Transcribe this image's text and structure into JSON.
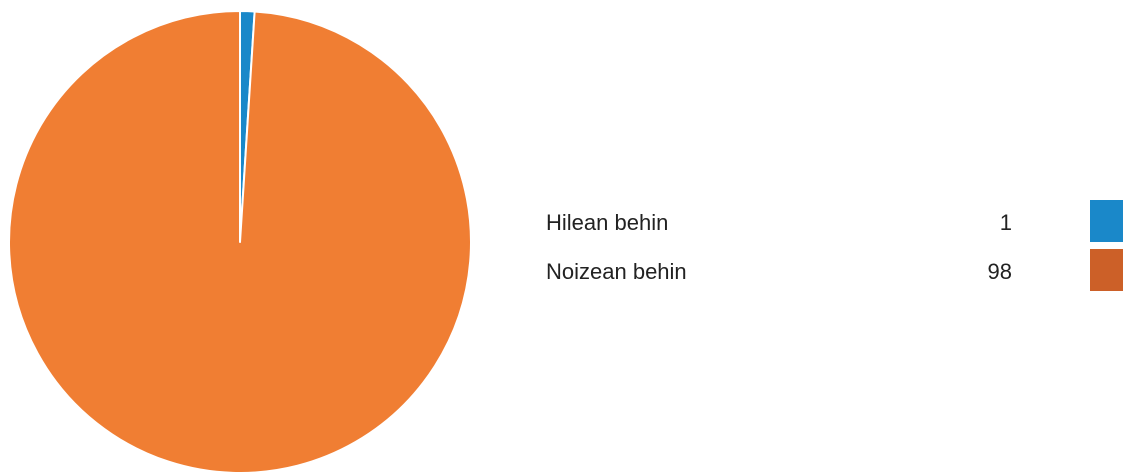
{
  "chart_data": {
    "type": "pie",
    "categories": [
      "Hilean behin",
      "Noizean behin"
    ],
    "values": [
      1,
      98
    ],
    "colors": [
      "#1a88c9",
      "#f07e33"
    ],
    "legend_colors": [
      "#1a88c9",
      "#cc6028"
    ]
  }
}
